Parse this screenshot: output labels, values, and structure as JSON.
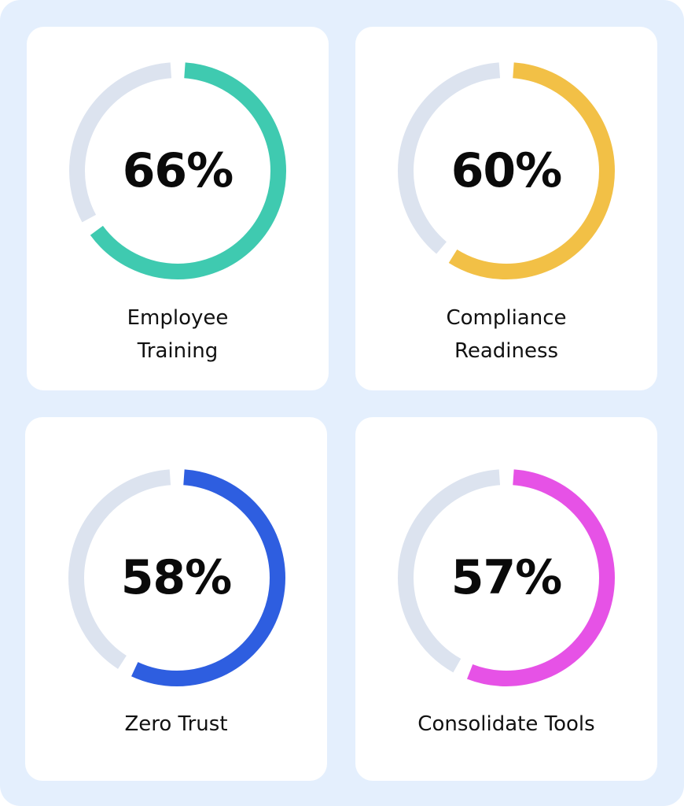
{
  "chart_data": [
    {
      "type": "donut",
      "value": 66,
      "value_label": "66%",
      "label_lines": [
        "Employee",
        "Training"
      ],
      "color": "#3fcab0"
    },
    {
      "type": "donut",
      "value": 60,
      "value_label": "60%",
      "label_lines": [
        "Compliance",
        "Readiness"
      ],
      "color": "#f2c046"
    },
    {
      "type": "donut",
      "value": 58,
      "value_label": "58%",
      "label_lines": [
        "Zero Trust"
      ],
      "color": "#2e5ee0"
    },
    {
      "type": "donut",
      "value": 57,
      "value_label": "57%",
      "label_lines": [
        "Consolidate Tools"
      ],
      "color": "#e652e6"
    }
  ],
  "track_color": "#dce3ef"
}
